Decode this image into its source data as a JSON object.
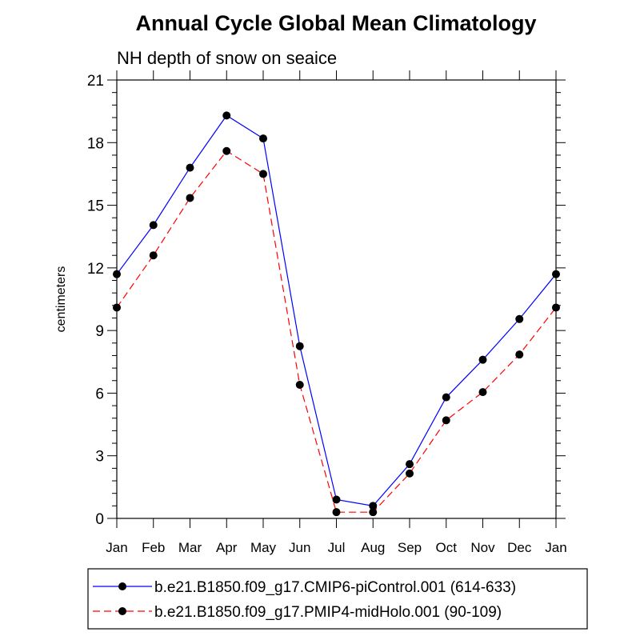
{
  "chart_data": {
    "type": "line",
    "title": "Annual Cycle Global Mean Climatology",
    "subtitle": "NH depth of snow on seaice",
    "xlabel": "",
    "ylabel": "centimeters",
    "categories": [
      "Jan",
      "Feb",
      "Mar",
      "Apr",
      "May",
      "Jun",
      "Jul",
      "Aug",
      "Sep",
      "Oct",
      "Nov",
      "Dec",
      "Jan"
    ],
    "ylim": [
      0,
      21
    ],
    "yticks": [
      "0",
      "3",
      "6",
      "9",
      "12",
      "15",
      "18",
      "21"
    ],
    "series": [
      {
        "name": "b.e21.B1850.f09_g17.CMIP6-piControl.001 (614-633)",
        "color": "#0000ff",
        "dash": "solid",
        "values": [
          11.7,
          14.05,
          16.8,
          19.3,
          18.2,
          8.25,
          0.9,
          0.6,
          2.6,
          5.8,
          7.6,
          9.55,
          11.7
        ]
      },
      {
        "name": "b.e21.B1850.f09_g17.PMIP4-midHolo.001 (90-109)",
        "color": "#ff0000",
        "dash": "dashed",
        "values": [
          10.1,
          12.6,
          15.35,
          17.6,
          16.5,
          6.4,
          0.3,
          0.3,
          2.15,
          4.7,
          6.05,
          7.85,
          10.1
        ]
      }
    ],
    "grid": false,
    "legend_position": "bottom"
  }
}
